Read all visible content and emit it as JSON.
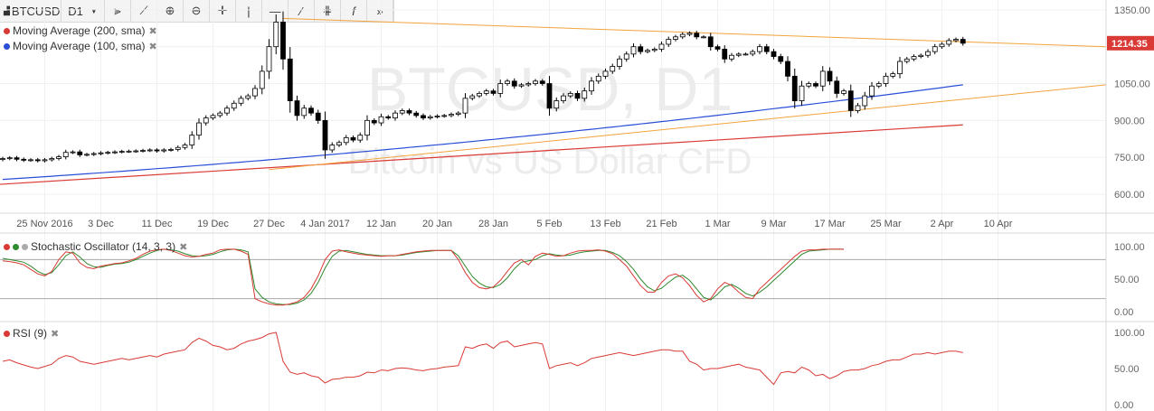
{
  "toolbar": {
    "symbol": "BTCUSD",
    "interval": "D1",
    "interval_icon": "caret-down-icon",
    "tools": [
      "bar-type-icon",
      "indicators-icon",
      "zoom-in-icon",
      "zoom-out-icon",
      "crosshair-icon",
      "vertical-line-icon",
      "horizontal-line-icon",
      "trend-line-icon",
      "fibonacci-icon",
      "function-icon",
      "forward-icon"
    ]
  },
  "watermark": {
    "title": "BTCUSD, D1",
    "subtitle": "Bitcoin vs US Dollar CFD"
  },
  "legends": {
    "ma200": "Moving Average (200, sma)",
    "ma100": "Moving Average (100, sma)",
    "stoch": "Stochastic Oscillator (14, 3, 3)",
    "rsi": "RSI (9)",
    "close_icon": "close-icon"
  },
  "colors": {
    "up": "#ffffff",
    "down": "#000000",
    "ma200": "#d93a35",
    "ma100": "#2a4fd6",
    "trend": "#f3a33b",
    "stoch_k": "#d93a35",
    "stoch_d": "#2e8b2e",
    "rsi": "#d93a35",
    "price_tag": "#d93a35"
  },
  "chart_data": {
    "type": "candlestick",
    "price_axis": {
      "ticks": [
        600,
        750,
        900,
        1050,
        1200,
        1350
      ],
      "labels": [
        "600.00",
        "750.00",
        "900.00",
        "1050.00",
        "1200.00",
        "1350.00"
      ],
      "ylim": [
        530,
        1390
      ]
    },
    "current_price": 1214.35,
    "current_price_label": "1214.35",
    "date_labels": [
      "25 Nov 2016",
      "3 Dec",
      "11 Dec",
      "19 Dec",
      "27 Dec",
      "4 Jan 2017",
      "12 Jan",
      "20 Jan",
      "28 Jan",
      "5 Feb",
      "13 Feb",
      "21 Feb",
      "1 Mar",
      "9 Mar",
      "17 Mar",
      "25 Mar",
      "2 Apr",
      "10 Apr"
    ],
    "date_label_index": [
      6,
      14,
      22,
      30,
      38,
      46,
      54,
      62,
      70,
      78,
      86,
      94,
      102,
      110,
      118,
      126,
      134,
      142
    ],
    "start_date": "2016-11-19",
    "closes": [
      745,
      748,
      742,
      738,
      740,
      736,
      740,
      745,
      752,
      770,
      772,
      760,
      762,
      765,
      768,
      770,
      772,
      774,
      775,
      776,
      778,
      780,
      776,
      780,
      782,
      790,
      800,
      840,
      890,
      910,
      920,
      930,
      950,
      970,
      990,
      1000,
      1030,
      1100,
      1200,
      1300,
      1150,
      980,
      920,
      950,
      930,
      900,
      780,
      800,
      810,
      830,
      820,
      840,
      900,
      890,
      915,
      910,
      930,
      940,
      930,
      920,
      910,
      915,
      918,
      920,
      925,
      930,
      990,
      1000,
      1010,
      1020,
      1010,
      1050,
      1060,
      1040,
      1045,
      1050,
      1060,
      1050,
      950,
      980,
      1000,
      1010,
      990,
      1020,
      1060,
      1080,
      1100,
      1120,
      1150,
      1170,
      1200,
      1180,
      1185,
      1190,
      1210,
      1230,
      1240,
      1250,
      1255,
      1240,
      1240,
      1200,
      1190,
      1150,
      1165,
      1170,
      1170,
      1180,
      1200,
      1180,
      1160,
      1140,
      1080,
      980,
      1040,
      1050,
      1040,
      1100,
      1060,
      1010,
      1020,
      940,
      960,
      1000,
      1040,
      1050,
      1080,
      1090,
      1140,
      1150,
      1160,
      1165,
      1180,
      1200,
      1210,
      1225,
      1230,
      1214
    ],
    "ma200": {
      "start": 640,
      "end": 882
    },
    "ma100": {
      "start": 660,
      "end": 1045
    },
    "trend_upper": {
      "start": 1315,
      "end": 1200
    },
    "trend_lower": {
      "start_index": 38,
      "start": 700,
      "end": 1045
    },
    "stochastic": {
      "ticks": [
        0,
        50,
        100
      ],
      "labels": [
        "0.00",
        "50.00",
        "100.00"
      ],
      "levels": [
        20,
        80
      ],
      "k": [
        78,
        77,
        75,
        72,
        65,
        58,
        55,
        62,
        80,
        92,
        90,
        75,
        68,
        66,
        70,
        72,
        74,
        75,
        78,
        82,
        88,
        93,
        95,
        96,
        94,
        90,
        86,
        84,
        85,
        88,
        90,
        95,
        96,
        96,
        93,
        88,
        20,
        15,
        12,
        10,
        10,
        12,
        15,
        22,
        35,
        55,
        80,
        93,
        95,
        92,
        90,
        88,
        87,
        86,
        85,
        86,
        86,
        88,
        90,
        92,
        93,
        94,
        94,
        94,
        94,
        80,
        60,
        45,
        37,
        35,
        38,
        48,
        62,
        75,
        80,
        72,
        85,
        90,
        88,
        85,
        86,
        90,
        93,
        94,
        94,
        95,
        93,
        89,
        80,
        70,
        55,
        40,
        30,
        30,
        45,
        55,
        58,
        52,
        40,
        25,
        15,
        20,
        35,
        45,
        40,
        30,
        22,
        20,
        35,
        45,
        55,
        65,
        75,
        85,
        93,
        95,
        95,
        96,
        96,
        96,
        96
      ],
      "d": [
        82,
        80,
        78,
        76,
        70,
        62,
        57,
        60,
        72,
        86,
        92,
        84,
        74,
        69,
        68,
        71,
        73,
        74,
        76,
        80,
        85,
        90,
        94,
        96,
        95,
        93,
        89,
        86,
        85,
        86,
        88,
        92,
        95,
        96,
        95,
        92,
        35,
        22,
        15,
        12,
        11,
        11,
        13,
        18,
        28,
        45,
        67,
        85,
        93,
        94,
        92,
        90,
        88,
        87,
        86,
        86,
        86,
        87,
        89,
        91,
        92,
        93,
        94,
        94,
        94,
        86,
        70,
        54,
        44,
        38,
        37,
        42,
        52,
        66,
        76,
        78,
        80,
        86,
        89,
        87,
        86,
        87,
        90,
        92,
        93,
        94,
        94,
        91,
        86,
        77,
        65,
        50,
        38,
        32,
        36,
        45,
        53,
        56,
        48,
        35,
        22,
        18,
        27,
        38,
        42,
        36,
        28,
        24,
        30,
        38,
        48,
        58,
        68,
        78,
        88,
        93,
        94,
        95,
        96,
        96,
        96
      ]
    },
    "rsi": {
      "ticks": [
        0,
        50,
        100
      ],
      "labels": [
        "0.00",
        "50.00",
        "100.00"
      ],
      "values": [
        60,
        62,
        58,
        55,
        52,
        50,
        53,
        56,
        64,
        68,
        66,
        60,
        58,
        56,
        58,
        60,
        62,
        64,
        62,
        64,
        66,
        68,
        66,
        70,
        72,
        74,
        76,
        86,
        92,
        88,
        82,
        80,
        76,
        78,
        84,
        88,
        90,
        93,
        98,
        100,
        60,
        45,
        42,
        44,
        40,
        38,
        30,
        35,
        36,
        38,
        38,
        40,
        45,
        44,
        48,
        47,
        50,
        51,
        50,
        48,
        47,
        49,
        50,
        52,
        53,
        54,
        80,
        78,
        82,
        84,
        78,
        86,
        88,
        80,
        82,
        84,
        86,
        84,
        50,
        54,
        56,
        58,
        54,
        58,
        64,
        66,
        68,
        70,
        72,
        70,
        68,
        70,
        72,
        74,
        76,
        76,
        74,
        74,
        60,
        56,
        48,
        50,
        50,
        52,
        54,
        56,
        52,
        50,
        48,
        38,
        28,
        44,
        46,
        44,
        52,
        48,
        40,
        42,
        36,
        40,
        46,
        48,
        48,
        50,
        54,
        56,
        60,
        62,
        62,
        66,
        70,
        70,
        72,
        70,
        72,
        74,
        74,
        72
      ]
    }
  }
}
